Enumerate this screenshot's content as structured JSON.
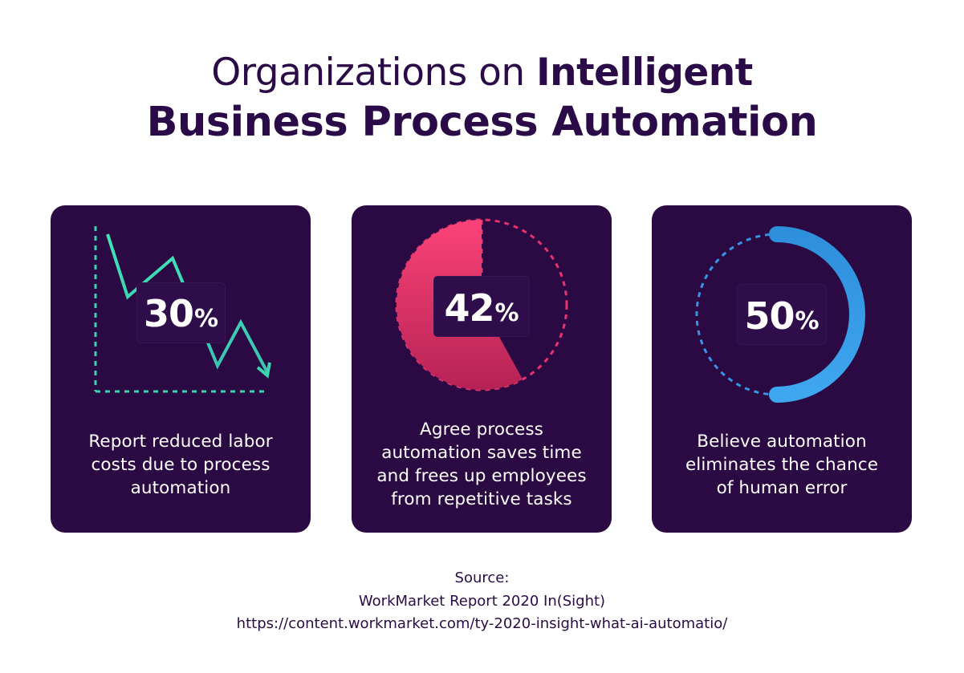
{
  "title": {
    "line1_light": "Organizations on ",
    "line1_bold": "Intelligent",
    "line2": "Business Process Automation"
  },
  "colors": {
    "background": "#ffffff",
    "title": "#2a0b47",
    "card": "#2b0a44",
    "teal": "#3ad4b0",
    "pink": "#f43d78",
    "blue": "#3aa0ea"
  },
  "cards": [
    {
      "number": "30",
      "unit": "%",
      "caption": "Report reduced labor\ncosts due to process\nautomation",
      "icon": "declining-line-chart-icon",
      "value_percent": 30
    },
    {
      "number": "42",
      "unit": "%",
      "caption": "Agree process\nautomation saves time\nand frees up employees\nfrom repetitive tasks",
      "icon": "pie-chart-icon",
      "value_percent": 42
    },
    {
      "number": "50",
      "unit": "%",
      "caption": "Believe automation\neliminates the chance\nof human error",
      "icon": "half-ring-gauge-icon",
      "value_percent": 50
    }
  ],
  "source": {
    "label": "Source:",
    "report": "WorkMarket Report 2020 In(Sight)",
    "url": "https://content.workmarket.com/ty-2020-insight-what-ai-automatio/"
  }
}
